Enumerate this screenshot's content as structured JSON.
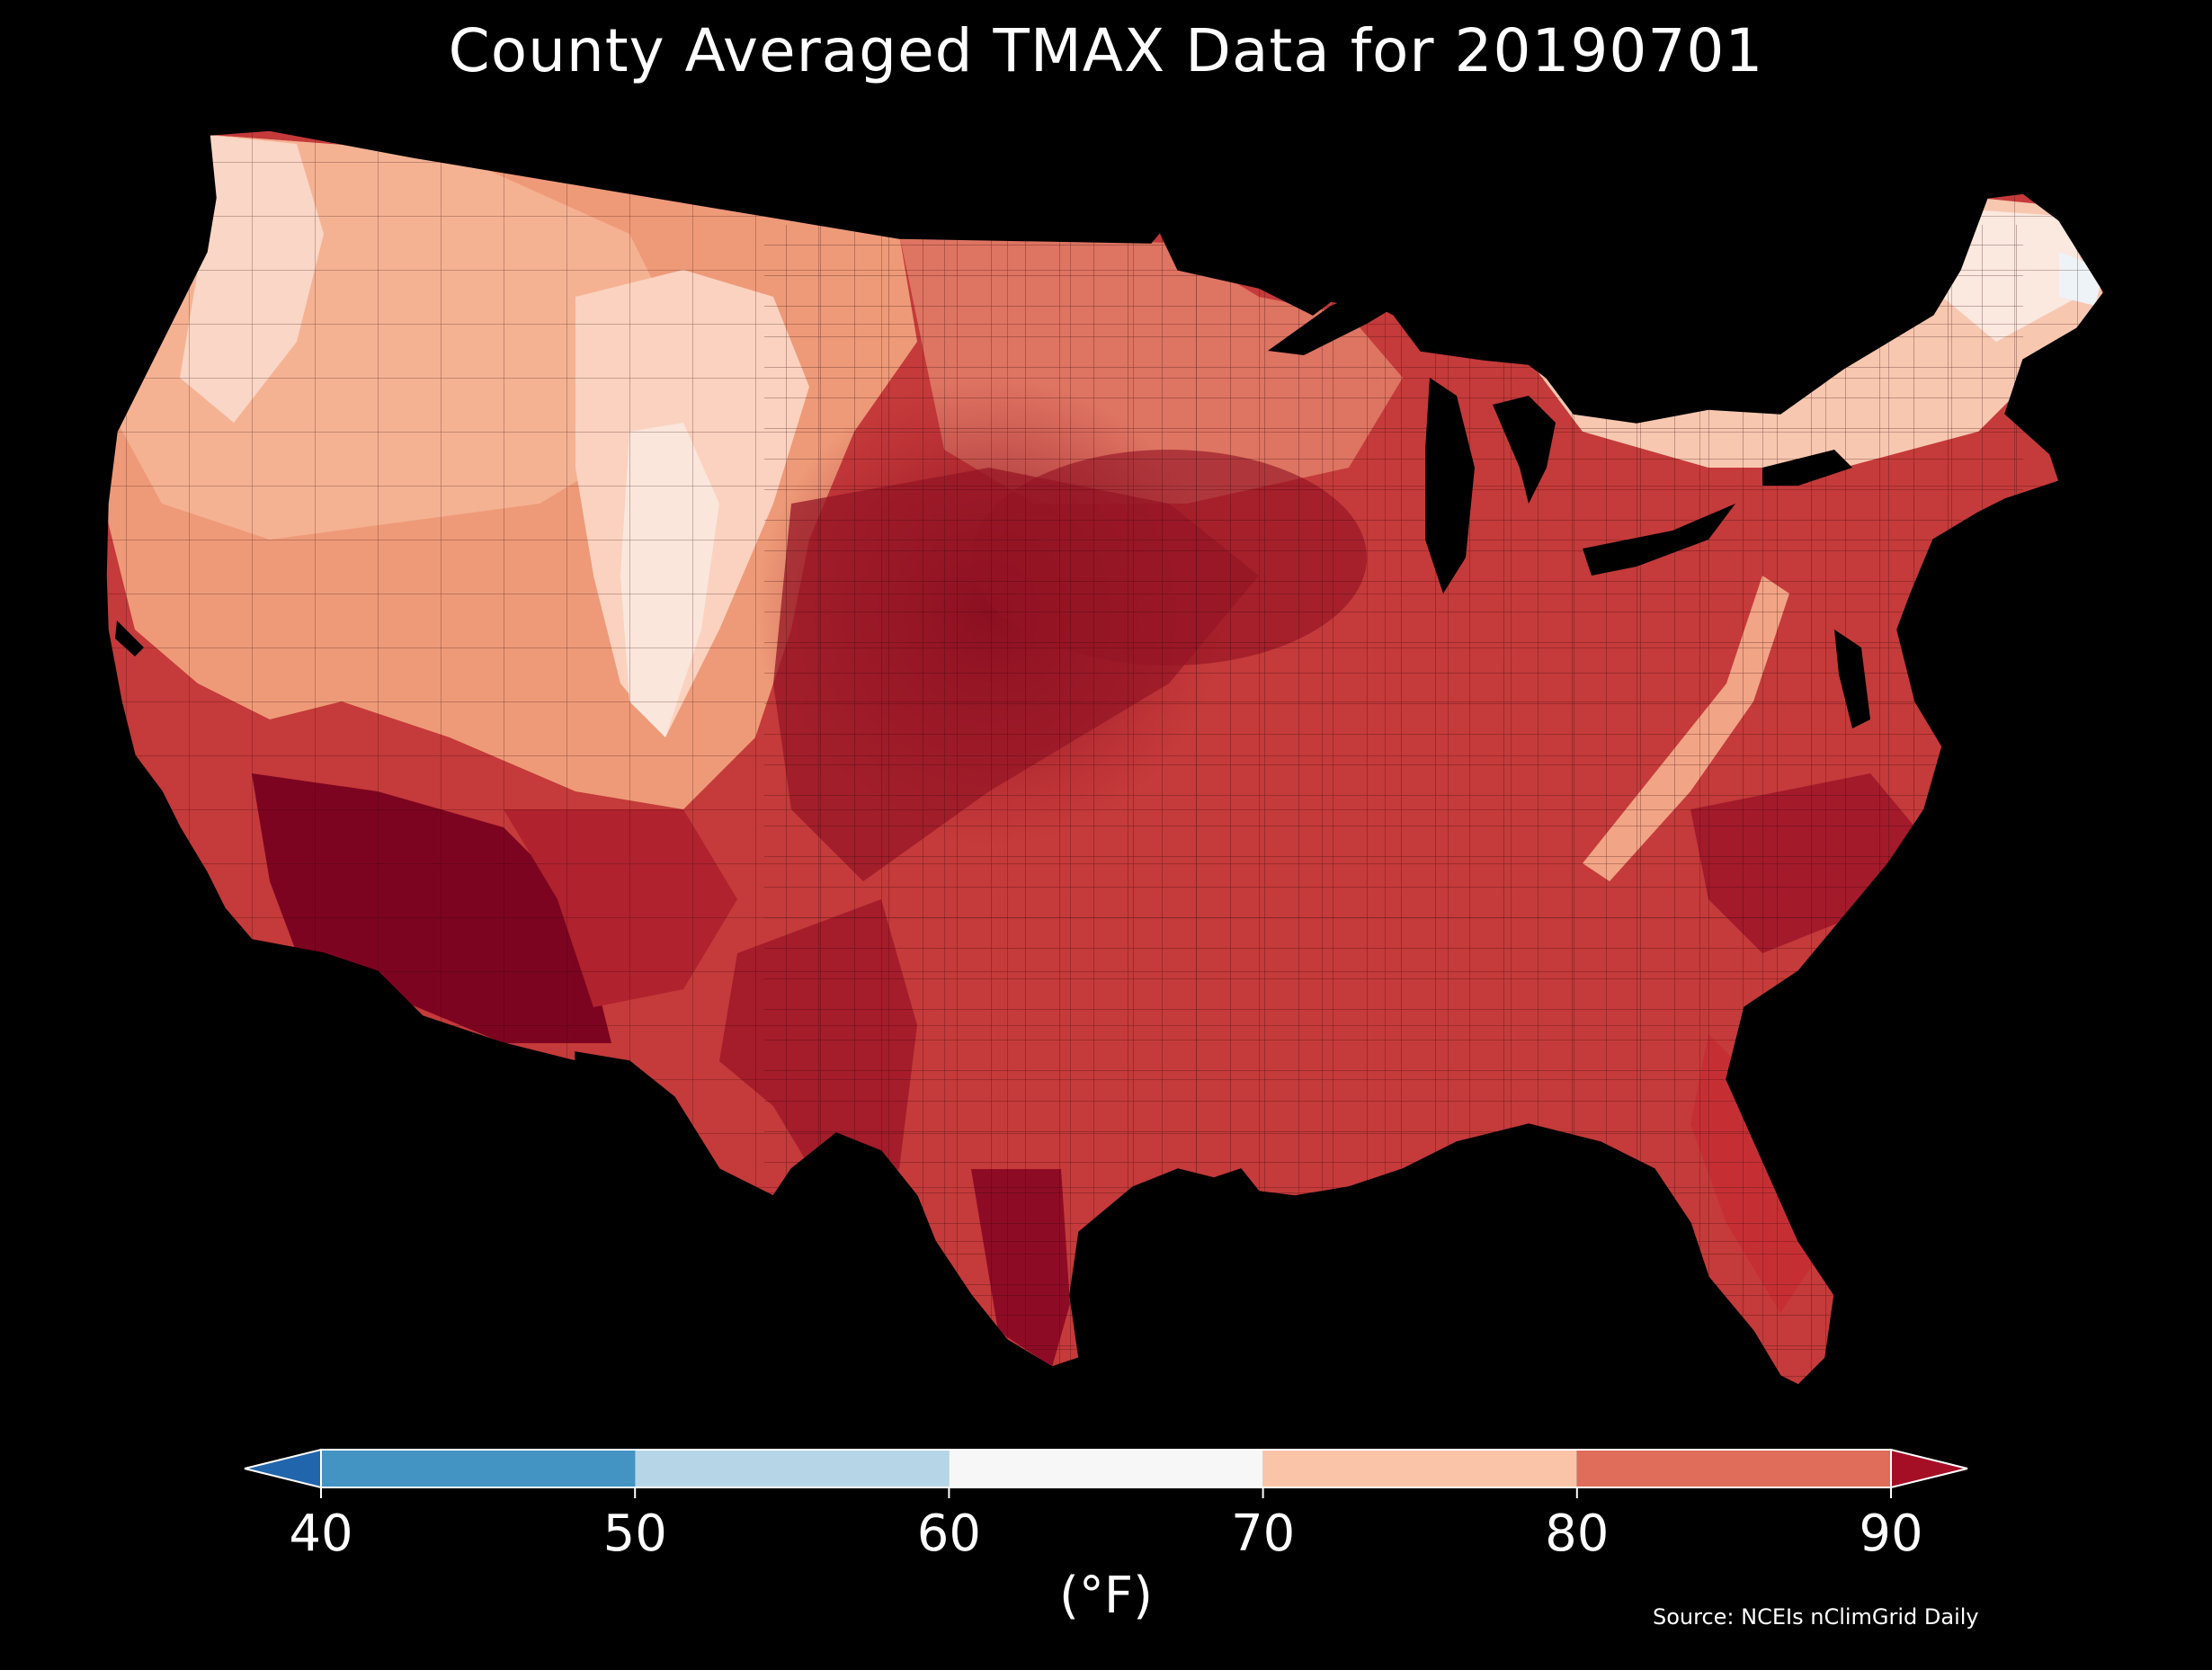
{
  "title": "County Averaged TMAX Data for 20190701",
  "colorbar": {
    "unit": "(°F)",
    "ticks": [
      "40",
      "50",
      "60",
      "70",
      "80",
      "90"
    ],
    "bins": [
      {
        "from": 40,
        "to": 50,
        "color": "#4393c3"
      },
      {
        "from": 50,
        "to": 60,
        "color": "#b6d6e8"
      },
      {
        "from": 60,
        "to": 70,
        "color": "#f7f7f7"
      },
      {
        "from": 70,
        "to": 80,
        "color": "#fac4a8"
      },
      {
        "from": 80,
        "to": 90,
        "color": "#e06c5a"
      }
    ],
    "under_color": "#2166ac",
    "over_color": "#a50f26"
  },
  "source": "Source: NCEIs nClimGrid Daily",
  "colors": {
    "background": "#000000",
    "county_border": "#3a0a0a",
    "water": "#000000"
  }
}
